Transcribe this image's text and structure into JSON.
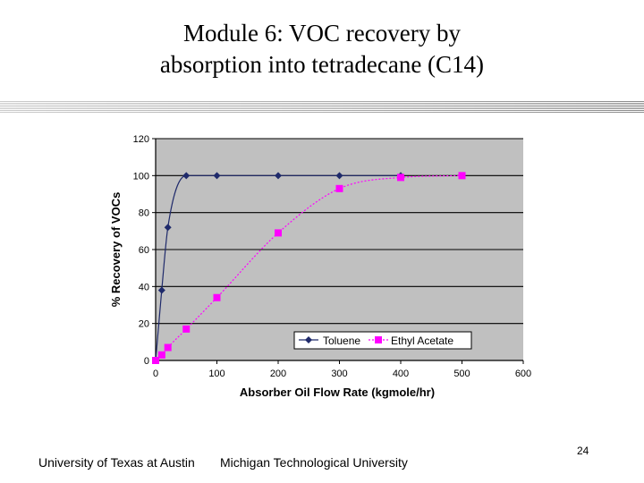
{
  "slide": {
    "title_line1": "Module 6: VOC recovery by",
    "title_line2": "absorption into tetradecane (C14)",
    "footer_left": "University of Texas at Austin",
    "footer_middle": "Michigan Technological University",
    "page_number": "24"
  },
  "chart_data": {
    "type": "line",
    "xlabel": "Absorber Oil Flow Rate (kgmole/hr)",
    "ylabel": "% Recovery of VOCs",
    "xlim": [
      0,
      600
    ],
    "ylim": [
      0,
      120
    ],
    "xticks": [
      0,
      100,
      200,
      300,
      400,
      500,
      600
    ],
    "yticks": [
      0,
      20,
      40,
      60,
      80,
      100,
      120
    ],
    "grid": "horizontal",
    "legend": "bottom-right",
    "series": [
      {
        "name": "Toluene",
        "color": "#1f2a6b",
        "marker": "diamond",
        "x": [
          0,
          10,
          20,
          50,
          100,
          200,
          300,
          400
        ],
        "y": [
          0,
          38,
          72,
          100,
          100,
          100,
          100,
          100
        ]
      },
      {
        "name": "Ethyl Acetate",
        "color": "#ff00ff",
        "marker": "square",
        "x": [
          0,
          10,
          20,
          50,
          100,
          200,
          300,
          400,
          500
        ],
        "y": [
          0,
          3,
          7,
          17,
          34,
          69,
          93,
          99,
          100
        ]
      }
    ]
  }
}
